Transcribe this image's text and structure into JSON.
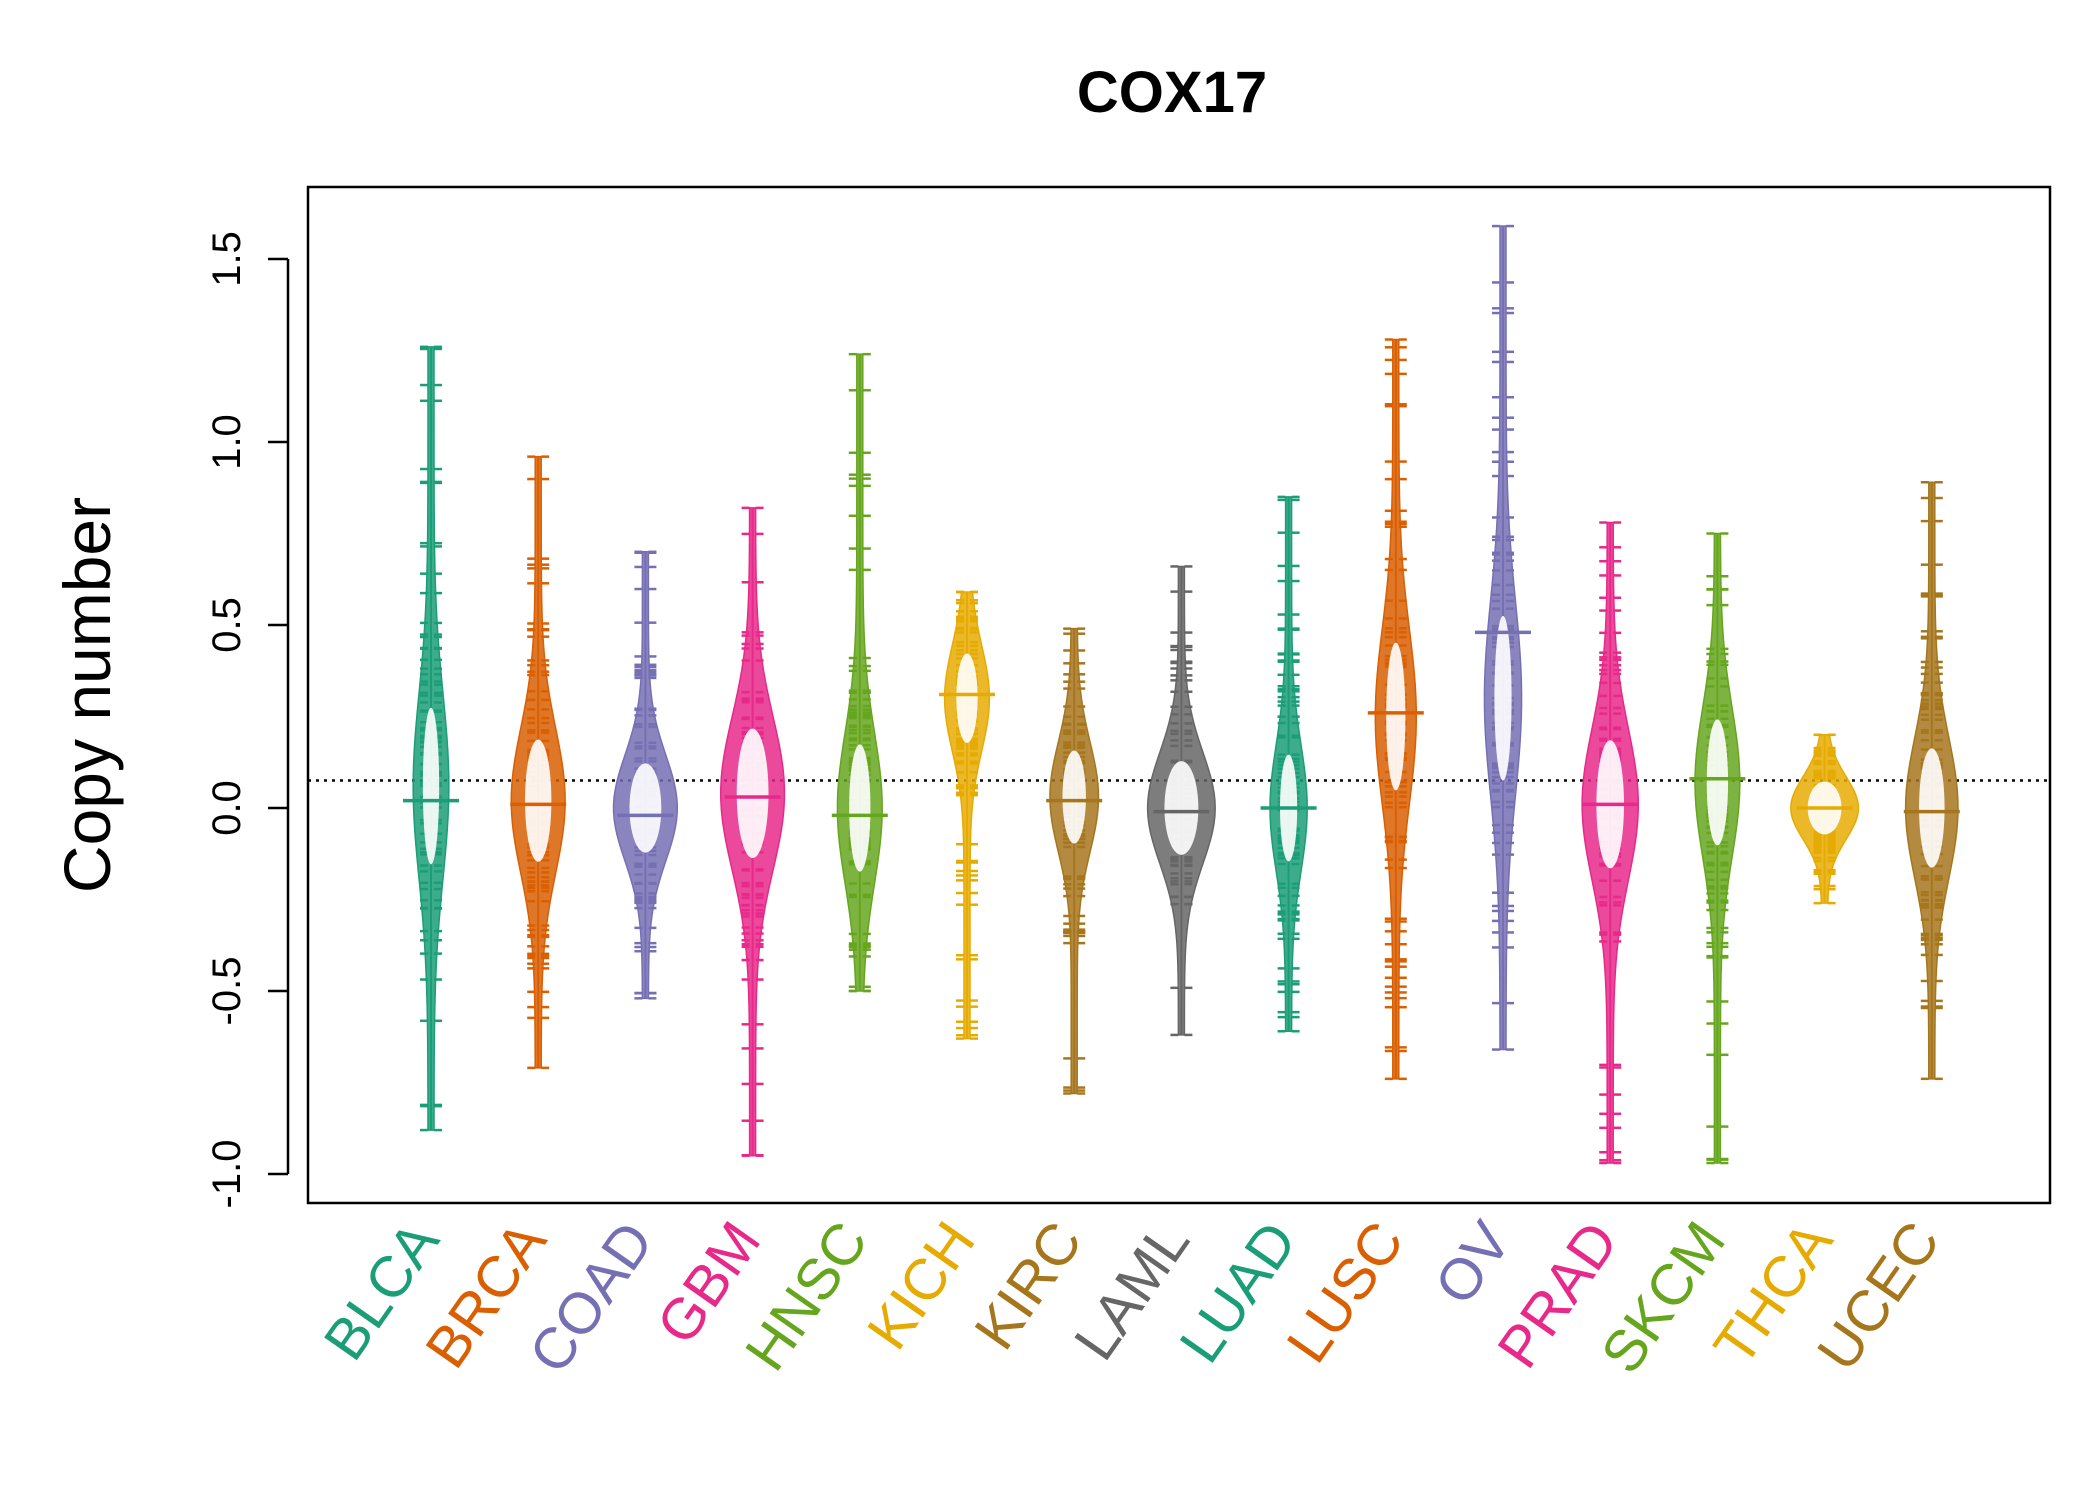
{
  "chart_data": {
    "type": "beanplot",
    "title": "COX17",
    "xlabel": "",
    "ylabel": "Copy number",
    "ylim": [
      -1.05,
      1.7
    ],
    "yticks": [
      -1.0,
      -0.5,
      0.0,
      0.5,
      1.0,
      1.5
    ],
    "ytick_labels": [
      "-1.0",
      "-0.5",
      "0.0",
      "0.5",
      "1.0",
      "1.5"
    ],
    "reference_line": 0.075,
    "categories": [
      "BLCA",
      "BRCA",
      "COAD",
      "GBM",
      "HNSC",
      "KICH",
      "KIRC",
      "LAML",
      "LUAD",
      "LUSC",
      "OV",
      "PRAD",
      "SKCM",
      "THCA",
      "UCEC"
    ],
    "colors": [
      "#1B9E77",
      "#D95F02",
      "#7570B3",
      "#E7298A",
      "#66A61E",
      "#E6AB02",
      "#A6761D",
      "#666666",
      "#1B9E77",
      "#D95F02",
      "#7570B3",
      "#E7298A",
      "#66A61E",
      "#E6AB02",
      "#A6761D"
    ],
    "series": [
      {
        "name": "BLCA",
        "min": -0.88,
        "max": 1.26,
        "mode": 0.06,
        "median": 0.02,
        "half_width": 0.18
      },
      {
        "name": "BRCA",
        "min": -0.71,
        "max": 0.96,
        "mode": 0.02,
        "median": 0.01,
        "half_width": 0.42
      },
      {
        "name": "COAD",
        "min": -0.52,
        "max": 0.7,
        "mode": 0.0,
        "median": -0.02,
        "half_width": 0.55
      },
      {
        "name": "GBM",
        "min": -0.95,
        "max": 0.82,
        "mode": 0.04,
        "median": 0.03,
        "half_width": 0.55
      },
      {
        "name": "HNSC",
        "min": -0.5,
        "max": 1.24,
        "mode": 0.0,
        "median": -0.02,
        "half_width": 0.3
      },
      {
        "name": "KICH",
        "min": -0.63,
        "max": 0.59,
        "mode": 0.3,
        "median": 0.31,
        "half_width": 0.3
      },
      {
        "name": "KIRC",
        "min": -0.78,
        "max": 0.49,
        "mode": 0.03,
        "median": 0.02,
        "half_width": 0.35
      },
      {
        "name": "LAML",
        "min": -0.62,
        "max": 0.66,
        "mode": 0.0,
        "median": -0.01,
        "half_width": 0.6
      },
      {
        "name": "LUAD",
        "min": -0.61,
        "max": 0.85,
        "mode": 0.0,
        "median": 0.0,
        "half_width": 0.2
      },
      {
        "name": "LUSC",
        "min": -0.74,
        "max": 1.28,
        "mode": 0.25,
        "median": 0.26,
        "half_width": 0.25
      },
      {
        "name": "OV",
        "min": -0.66,
        "max": 1.59,
        "mode": 0.3,
        "median": 0.48,
        "half_width": 0.2
      },
      {
        "name": "PRAD",
        "min": -0.97,
        "max": 0.78,
        "mode": 0.01,
        "median": 0.01,
        "half_width": 0.45
      },
      {
        "name": "SKCM",
        "min": -0.97,
        "max": 0.75,
        "mode": 0.07,
        "median": 0.08,
        "half_width": 0.3
      },
      {
        "name": "THCA",
        "min": -0.26,
        "max": 0.2,
        "mode": 0.0,
        "median": 0.0,
        "half_width": 0.6
      },
      {
        "name": "UCEC",
        "min": -0.74,
        "max": 0.89,
        "mode": 0.0,
        "median": -0.01,
        "half_width": 0.4
      }
    ]
  }
}
